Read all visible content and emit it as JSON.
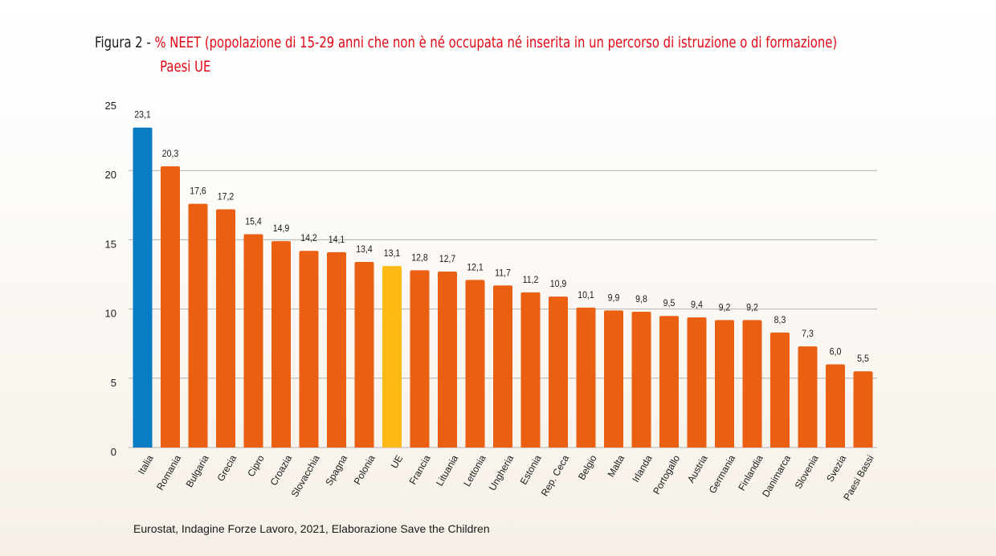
{
  "title": {
    "prefix": "Figura 2 -",
    "main": "% NEET (popolazione di 15-29 anni che non è né occupata né inserita in un percorso di istruzione o di formazione)",
    "sub": "Paesi UE"
  },
  "source": "Eurostat, Indagine Forze Lavoro, 2021, Elaborazione Save the Children",
  "colors": {
    "default_bar": "#eb5f12",
    "highlight_italy": "#0a7cc3",
    "highlight_eu": "#fdb913",
    "grid": "#b3b3b3",
    "axis_text": "#1a1a1a"
  },
  "chart_data": {
    "type": "bar",
    "categories": [
      "Italia",
      "Romania",
      "Bulgaria",
      "Grecia",
      "Cipro",
      "Croazia",
      "Slovacchia",
      "Spagna",
      "Polonia",
      "UE",
      "Francia",
      "Lituania",
      "Lettonia",
      "Ungheria",
      "Estonia",
      "Rep. Ceca",
      "Belgio",
      "Malta",
      "Irlanda",
      "Portogallo",
      "Austria",
      "Germania",
      "Finlandia",
      "Danimarca",
      "Slovenia",
      "Svezia",
      "Paesi Bassi"
    ],
    "values": [
      23.1,
      20.3,
      17.6,
      17.2,
      15.4,
      14.9,
      14.2,
      14.1,
      13.4,
      13.1,
      12.8,
      12.7,
      12.1,
      11.7,
      11.2,
      10.9,
      10.1,
      9.9,
      9.8,
      9.5,
      9.4,
      9.2,
      9.2,
      8.3,
      7.3,
      6.0,
      5.5
    ],
    "labels": [
      "23,1",
      "20,3",
      "17,6",
      "17,2",
      "15,4",
      "14,9",
      "14,2",
      "14,1",
      "13,4",
      "13,1",
      "12,8",
      "12,7",
      "12,1",
      "11,7",
      "11,2",
      "10,9",
      "10,1",
      "9,9",
      "9,8",
      "9,5",
      "9,4",
      "9,2",
      "9,2",
      "8,3",
      "7,3",
      "6,0",
      "5,5"
    ],
    "highlights": {
      "Italia": "highlight_italy",
      "UE": "highlight_eu"
    },
    "yticks": [
      0,
      5,
      10,
      15,
      20,
      25
    ],
    "ylim": [
      0,
      25
    ],
    "grid": true,
    "legend": "none"
  }
}
